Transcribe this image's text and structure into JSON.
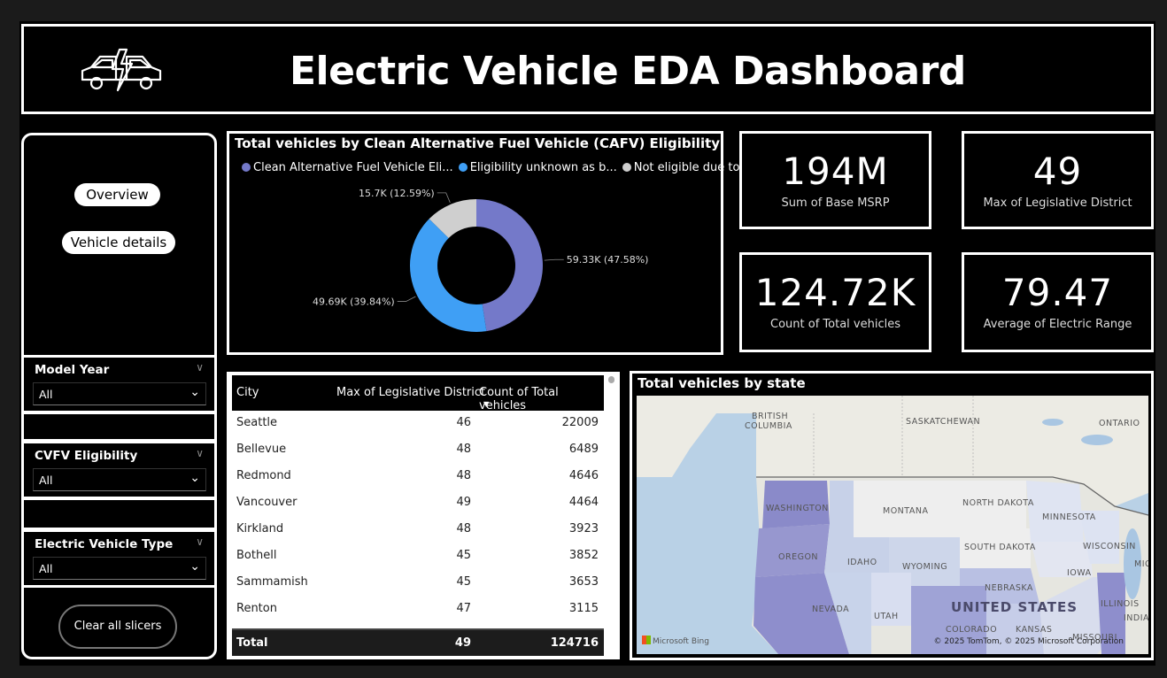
{
  "header": {
    "title": "Electric Vehicle EDA Dashboard",
    "icon": "electric-car-icon"
  },
  "nav": {
    "overview_label": "Overview",
    "vehicle_details_label": "Vehicle details"
  },
  "slicers": [
    {
      "title": "Model Year",
      "value": "All"
    },
    {
      "title": "CVFV Eligibility",
      "value": "All"
    },
    {
      "title": "Electric Vehicle Type",
      "value": "All"
    }
  ],
  "clear_button_label": "Clear all slicers",
  "donut": {
    "title": "Total vehicles by Clean Alternative Fuel Vehicle (CAFV) Eligibility",
    "legend": [
      {
        "label": "Clean Alternative Fuel Vehicle Eli...",
        "color": "#7479c9"
      },
      {
        "label": "Eligibility unknown as b...",
        "color": "#3f9ff5"
      },
      {
        "label": "Not eligible due to l...",
        "color": "#cfcfcf"
      }
    ],
    "slice_labels": [
      "59.33K (47.58%)",
      "49.69K (39.84%)",
      "15.7K (12.59%)"
    ]
  },
  "chart_data": {
    "type": "pie",
    "title": "Total vehicles by Clean Alternative Fuel Vehicle (CAFV) Eligibility",
    "categories": [
      "Clean Alternative Fuel Vehicle Eli...",
      "Eligibility unknown as b...",
      "Not eligible due to l..."
    ],
    "values": [
      59330,
      49690,
      15700
    ],
    "percents": [
      47.58,
      39.84,
      12.59
    ],
    "colors": [
      "#7479c9",
      "#3f9ff5",
      "#cfcfcf"
    ],
    "legend": "top"
  },
  "kpis": [
    {
      "value": "194M",
      "label": "Sum of Base MSRP"
    },
    {
      "value": "49",
      "label": "Max of Legislative District"
    },
    {
      "value": "124.72K",
      "label": "Count of Total vehicles"
    },
    {
      "value": "79.47",
      "label": "Average of Electric Range"
    }
  ],
  "table": {
    "columns": [
      "City",
      "Max of Legislative District",
      "Count of Total vehicles"
    ],
    "rows": [
      [
        "Seattle",
        "46",
        "22009"
      ],
      [
        "Bellevue",
        "48",
        "6489"
      ],
      [
        "Redmond",
        "48",
        "4646"
      ],
      [
        "Vancouver",
        "49",
        "4464"
      ],
      [
        "Kirkland",
        "48",
        "3923"
      ],
      [
        "Bothell",
        "45",
        "3852"
      ],
      [
        "Sammamish",
        "45",
        "3653"
      ],
      [
        "Renton",
        "47",
        "3115"
      ]
    ],
    "total": [
      "Total",
      "49",
      "124716"
    ]
  },
  "map": {
    "title": "Total vehicles by state",
    "labels": {
      "british_columbia_1": "BRITISH",
      "british_columbia_2": "COLUMBIA",
      "saskatchewan": "SASKATCHEWAN",
      "ontario": "ONTARIO",
      "washington": "WASHINGTON",
      "montana": "MONTANA",
      "north_dakota": "NORTH DAKOTA",
      "minnesota": "MINNESOTA",
      "oregon": "OREGON",
      "idaho": "IDAHO",
      "wyoming": "WYOMING",
      "south_dakota": "SOUTH DAKOTA",
      "wisconsin": "WISCONSIN",
      "iowa": "IOWA",
      "nebraska": "NEBRASKA",
      "nevada": "NEVADA",
      "utah": "UTAH",
      "colorado": "COLORADO",
      "kansas": "KANSAS",
      "illinois": "ILLINOIS",
      "indiana": "INDIA",
      "missouri": "MISSOURI",
      "michigan": "MIC",
      "country": "UNITED STATES"
    },
    "bing": "Microsoft Bing",
    "copyright": "© 2025 TomTom, © 2025 Microsoft Corporation"
  }
}
